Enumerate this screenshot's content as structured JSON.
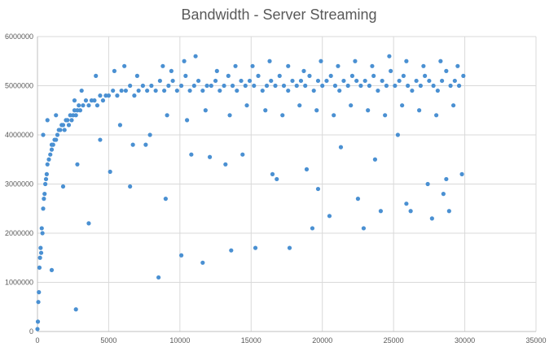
{
  "chart_data": {
    "type": "scatter",
    "title": "Bandwidth - Server Streaming",
    "xlabel": "",
    "ylabel": "",
    "xlim": [
      0,
      35000
    ],
    "ylim": [
      0,
      6000000
    ],
    "x_ticks": [
      "0",
      "5000",
      "10000",
      "15000",
      "20000",
      "25000",
      "30000",
      "35000"
    ],
    "y_ticks": [
      "0",
      "1000000",
      "2000000",
      "3000000",
      "4000000",
      "5000000",
      "6000000"
    ],
    "grid": true,
    "legend": "none",
    "marker_color": "#4a90d2",
    "series": [
      {
        "points_x": [
          0,
          30,
          60,
          100,
          140,
          180,
          220,
          260,
          300,
          350,
          400,
          450,
          500,
          550,
          600,
          650,
          700,
          800,
          900,
          1000,
          1100,
          1200,
          1300,
          1400,
          1500,
          1600,
          1700,
          1800,
          1900,
          2000,
          2100,
          2200,
          2300,
          2400,
          2500,
          2600,
          2700,
          2800,
          2900,
          3000,
          3200,
          3400,
          3600,
          3800,
          4000,
          4200,
          4400,
          4600,
          4800,
          5000,
          5300,
          5600,
          5900,
          6200,
          6500,
          6800,
          7100,
          7400,
          7700,
          8000,
          8300,
          8600,
          8900,
          9200,
          9500,
          9800,
          10100,
          10400,
          10700,
          11000,
          11300,
          11600,
          11900,
          12200,
          12500,
          12800,
          13100,
          13400,
          13700,
          14000,
          14300,
          14600,
          14900,
          15200,
          15500,
          15800,
          16100,
          16400,
          16700,
          17000,
          17300,
          17600,
          17900,
          18200,
          18500,
          18800,
          19100,
          19400,
          19700,
          20000,
          20300,
          20600,
          20900,
          21200,
          21500,
          21800,
          22100,
          22400,
          22700,
          23000,
          23300,
          23600,
          23900,
          24200,
          24500,
          24800,
          25100,
          25400,
          25700,
          26000,
          26300,
          26600,
          26900,
          27200,
          27500,
          27800,
          28100,
          28400,
          28700,
          29000,
          29300,
          29600,
          29900,
          400,
          700,
          1000,
          1300,
          2600,
          3100,
          4100,
          5400,
          6100,
          7000,
          8800,
          9400,
          10300,
          11100,
          12600,
          13900,
          15100,
          16300,
          17600,
          18700,
          19900,
          21100,
          22300,
          23500,
          24700,
          25900,
          27100,
          28300,
          29500,
          1000,
          2800,
          4400,
          5800,
          6700,
          7900,
          9100,
          10500,
          11800,
          13500,
          14700,
          16000,
          17200,
          18400,
          19600,
          20800,
          22000,
          23200,
          24400,
          25600,
          26800,
          28000,
          29200,
          8500,
          10100,
          11600,
          13600,
          15300,
          17700,
          19300,
          20500,
          22900,
          24100,
          26200,
          27700,
          28900,
          2700,
          3600,
          6500,
          9000,
          12100,
          14400,
          16800,
          18900,
          21300,
          23700,
          25300,
          27400,
          28700,
          29800,
          1800,
          5100,
          7600,
          10800,
          13200,
          16500,
          19700,
          22500,
          25900,
          28500
        ],
        "points_y": [
          50000,
          200000,
          600000,
          800000,
          1300000,
          1500000,
          1700000,
          1600000,
          2100000,
          2000000,
          2500000,
          2700000,
          2800000,
          3000000,
          3100000,
          3200000,
          3400000,
          3500000,
          3600000,
          3700000,
          3800000,
          3900000,
          3900000,
          4000000,
          4100000,
          4100000,
          4200000,
          4200000,
          4100000,
          4300000,
          4300000,
          4200000,
          4400000,
          4300000,
          4400000,
          4500000,
          4400000,
          4500000,
          4600000,
          4500000,
          4600000,
          4700000,
          4600000,
          4700000,
          4700000,
          4600000,
          4800000,
          4700000,
          4800000,
          4800000,
          4900000,
          4800000,
          4900000,
          4900000,
          5000000,
          4800000,
          4900000,
          5000000,
          4900000,
          5000000,
          4900000,
          5100000,
          4900000,
          5000000,
          5100000,
          4900000,
          5000000,
          5200000,
          4900000,
          5000000,
          5100000,
          4900000,
          5000000,
          5000000,
          5100000,
          4900000,
          5000000,
          5200000,
          5000000,
          4900000,
          5100000,
          5000000,
          5100000,
          5000000,
          5200000,
          4900000,
          5000000,
          5100000,
          5000000,
          5200000,
          5000000,
          4900000,
          5100000,
          5000000,
          5100000,
          5000000,
          5200000,
          4900000,
          5100000,
          5000000,
          5100000,
          5200000,
          5000000,
          4900000,
          5100000,
          5000000,
          5200000,
          5100000,
          5000000,
          5100000,
          5000000,
          5200000,
          4900000,
          5100000,
          5000000,
          5300000,
          5000000,
          5100000,
          5200000,
          5000000,
          4900000,
          5100000,
          5000000,
          5200000,
          5100000,
          5000000,
          4900000,
          5100000,
          5300000,
          5000000,
          5100000,
          5000000,
          5200000,
          4000000,
          4300000,
          3800000,
          4400000,
          4700000,
          4900000,
          5200000,
          5300000,
          5400000,
          5200000,
          5400000,
          5300000,
          5500000,
          5600000,
          5300000,
          5400000,
          5400000,
          5500000,
          5400000,
          5300000,
          5500000,
          5400000,
          5500000,
          5400000,
          5600000,
          5500000,
          5400000,
          5500000,
          5400000,
          1250000,
          3400000,
          3900000,
          4200000,
          3800000,
          4000000,
          4400000,
          4300000,
          4500000,
          4400000,
          4600000,
          4500000,
          4400000,
          4600000,
          4500000,
          4400000,
          4600000,
          4500000,
          4400000,
          4600000,
          4500000,
          4400000,
          4600000,
          1100000,
          1550000,
          1400000,
          1650000,
          1700000,
          1700000,
          2100000,
          2350000,
          2100000,
          2450000,
          2450000,
          2300000,
          2450000,
          450000,
          2200000,
          2950000,
          2700000,
          3550000,
          3600000,
          3100000,
          3300000,
          3750000,
          3500000,
          4000000,
          3000000,
          3100000,
          3200000,
          2950000,
          3250000,
          3800000,
          3600000,
          3400000,
          3200000,
          2900000,
          2700000,
          2600000,
          2800000
        ]
      }
    ]
  }
}
